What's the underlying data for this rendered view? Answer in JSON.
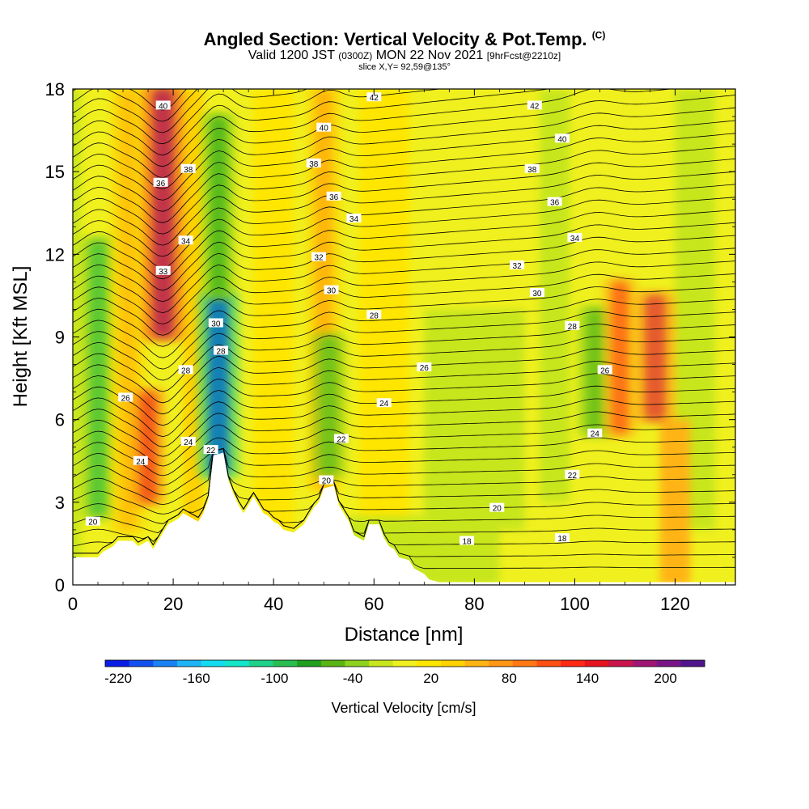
{
  "title": {
    "main": "Angled Section: Vertical Velocity & Pot.Temp.",
    "copyright": "(C)",
    "valid_a": "Valid 1200 JST",
    "valid_z": "(0300Z)",
    "valid_b": "MON 22 Nov 2021",
    "forecast": "[9hrFcst@2210z]",
    "slice": "slice X,Y= 92,59@135°"
  },
  "chart_data": {
    "type": "heatmap",
    "xlabel": "Distance [nm]",
    "ylabel": "Height [Kft MSL]",
    "xlim": [
      0,
      132
    ],
    "ylim": [
      0,
      18
    ],
    "xticks": [
      0,
      20,
      40,
      60,
      80,
      100,
      120
    ],
    "yticks": [
      0,
      3,
      6,
      9,
      12,
      15,
      18
    ],
    "colorbar": {
      "label": "Vertical Velocity [cm/s]",
      "ticks": [
        -220,
        -160,
        -100,
        -40,
        20,
        80,
        140,
        200
      ],
      "range": [
        -230,
        230
      ],
      "colors": [
        "#0a1ee6",
        "#1450f0",
        "#1a82f5",
        "#1eb4f7",
        "#14dcf0",
        "#14e6c8",
        "#1ed28c",
        "#28be50",
        "#1ea01e",
        "#5ab414",
        "#8cd21e",
        "#c8e61e",
        "#f0f01e",
        "#ffe600",
        "#ffd200",
        "#ffb414",
        "#ff9614",
        "#ff7814",
        "#ff5014",
        "#ff2814",
        "#e6141e",
        "#c8144b",
        "#a01473",
        "#781487",
        "#50148c"
      ]
    },
    "velocity_features": [
      {
        "x": 5,
        "ymin": 2.5,
        "ymax": 12.5,
        "value": -90
      },
      {
        "x": 11,
        "ymin": 2,
        "ymax": 18,
        "value": 60
      },
      {
        "x": 15,
        "ymin": 3,
        "ymax": 7,
        "value": 140
      },
      {
        "x": 18,
        "ymin": 9,
        "ymax": 18,
        "value": 210
      },
      {
        "x": 29,
        "ymin": 4,
        "ymax": 10.5,
        "value": -220
      },
      {
        "x": 29,
        "ymin": 10.5,
        "ymax": 17,
        "value": -80
      },
      {
        "x": 50,
        "ymin": 3.5,
        "ymax": 18,
        "value": 70
      },
      {
        "x": 51,
        "ymin": 4,
        "ymax": 9,
        "value": -60
      },
      {
        "x": 104,
        "ymin": 5.5,
        "ymax": 10,
        "value": -60
      },
      {
        "x": 109,
        "ymin": 5.5,
        "ymax": 11,
        "value": 120
      },
      {
        "x": 116,
        "ymin": 6,
        "ymax": 10.5,
        "value": 160
      }
    ],
    "terrain": [
      [
        0,
        1.0
      ],
      [
        5,
        1.0
      ],
      [
        6,
        1.2
      ],
      [
        8,
        1.4
      ],
      [
        9,
        1.6
      ],
      [
        12,
        1.6
      ],
      [
        13,
        1.4
      ],
      [
        15,
        1.6
      ],
      [
        16,
        1.3
      ],
      [
        17,
        1.6
      ],
      [
        18,
        1.9
      ],
      [
        19,
        2.2
      ],
      [
        21,
        2.4
      ],
      [
        22,
        2.6
      ],
      [
        25,
        2.3
      ],
      [
        26,
        2.6
      ],
      [
        27,
        3.1
      ],
      [
        28,
        4.7
      ],
      [
        30,
        4.8
      ],
      [
        31,
        3.8
      ],
      [
        32,
        3.3
      ],
      [
        33,
        2.9
      ],
      [
        34,
        2.6
      ],
      [
        35,
        2.9
      ],
      [
        36,
        3.2
      ],
      [
        37,
        2.9
      ],
      [
        38,
        2.6
      ],
      [
        39,
        2.5
      ],
      [
        40,
        2.3
      ],
      [
        41,
        2.2
      ],
      [
        42,
        2.0
      ],
      [
        44,
        1.9
      ],
      [
        46,
        2.2
      ],
      [
        47,
        2.5
      ],
      [
        48,
        2.8
      ],
      [
        49,
        3.0
      ],
      [
        50,
        3.5
      ],
      [
        52,
        3.6
      ],
      [
        53,
        2.9
      ],
      [
        55,
        2.3
      ],
      [
        56,
        1.8
      ],
      [
        58,
        1.6
      ],
      [
        59,
        2.2
      ],
      [
        61,
        2.2
      ],
      [
        62,
        1.7
      ],
      [
        63,
        1.4
      ],
      [
        64,
        1.3
      ],
      [
        65,
        1.0
      ],
      [
        67,
        0.9
      ],
      [
        68,
        0.6
      ],
      [
        70,
        0.4
      ],
      [
        71,
        0.2
      ],
      [
        73,
        0.1
      ],
      [
        132,
        0.1
      ]
    ],
    "theta_labels": [
      {
        "text": "40",
        "x": 18.0,
        "y": 17.4
      },
      {
        "text": "42",
        "x": 60.0,
        "y": 17.7
      },
      {
        "text": "42",
        "x": 92.0,
        "y": 17.4
      },
      {
        "text": "40",
        "x": 50.0,
        "y": 16.6
      },
      {
        "text": "40",
        "x": 97.5,
        "y": 16.2
      },
      {
        "text": "38",
        "x": 23.0,
        "y": 15.1
      },
      {
        "text": "38",
        "x": 48.0,
        "y": 15.3
      },
      {
        "text": "38",
        "x": 91.5,
        "y": 15.1
      },
      {
        "text": "36",
        "x": 17.5,
        "y": 14.6
      },
      {
        "text": "36",
        "x": 52.0,
        "y": 14.1
      },
      {
        "text": "36",
        "x": 96.0,
        "y": 13.9
      },
      {
        "text": "34",
        "x": 22.5,
        "y": 12.5
      },
      {
        "text": "34",
        "x": 56.0,
        "y": 13.3
      },
      {
        "text": "34",
        "x": 100.0,
        "y": 12.6
      },
      {
        "text": "32",
        "x": 49.0,
        "y": 11.9
      },
      {
        "text": "32",
        "x": 88.5,
        "y": 11.6
      },
      {
        "text": "33",
        "x": 18.0,
        "y": 11.4
      },
      {
        "text": "30",
        "x": 51.5,
        "y": 10.7
      },
      {
        "text": "30",
        "x": 92.5,
        "y": 10.6
      },
      {
        "text": "30",
        "x": 28.5,
        "y": 9.5
      },
      {
        "text": "28",
        "x": 60.0,
        "y": 9.8
      },
      {
        "text": "28",
        "x": 29.5,
        "y": 8.5
      },
      {
        "text": "28",
        "x": 99.5,
        "y": 9.4
      },
      {
        "text": "28",
        "x": 22.5,
        "y": 7.8
      },
      {
        "text": "26",
        "x": 70.0,
        "y": 7.9
      },
      {
        "text": "26",
        "x": 106.0,
        "y": 7.8
      },
      {
        "text": "26",
        "x": 10.5,
        "y": 6.8
      },
      {
        "text": "24",
        "x": 62.0,
        "y": 6.6
      },
      {
        "text": "24",
        "x": 104.0,
        "y": 5.5
      },
      {
        "text": "24",
        "x": 23.0,
        "y": 5.2
      },
      {
        "text": "22",
        "x": 27.5,
        "y": 4.9
      },
      {
        "text": "22",
        "x": 53.5,
        "y": 5.3
      },
      {
        "text": "24",
        "x": 13.5,
        "y": 4.5
      },
      {
        "text": "22",
        "x": 99.5,
        "y": 4.0
      },
      {
        "text": "20",
        "x": 50.5,
        "y": 3.8
      },
      {
        "text": "20",
        "x": 84.5,
        "y": 2.8
      },
      {
        "text": "20",
        "x": 4.0,
        "y": 2.3
      },
      {
        "text": "18",
        "x": 78.5,
        "y": 1.6
      },
      {
        "text": "18",
        "x": 97.5,
        "y": 1.7
      }
    ]
  }
}
